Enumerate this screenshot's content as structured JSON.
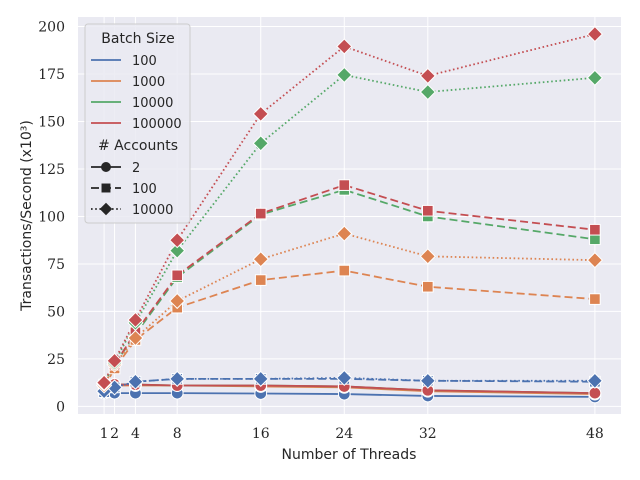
{
  "chart_data": {
    "type": "line",
    "xlabel": "Number of Threads",
    "ylabel": "Transactions/Second (x10³)",
    "xlim": [
      -1.5,
      50.5
    ],
    "ylim": [
      -4,
      205
    ],
    "xticks": [
      1,
      2,
      4,
      8,
      16,
      24,
      32,
      48
    ],
    "yticks": [
      0,
      25,
      50,
      75,
      100,
      125,
      150,
      175,
      200
    ],
    "grid": true,
    "legend_position": "top-left",
    "x": [
      1,
      2,
      4,
      8,
      16,
      24,
      32,
      48
    ],
    "legend": {
      "hue_title": "Batch Size",
      "style_title": "# Accounts",
      "batch_sizes": [
        {
          "label": "100",
          "color": "#4C72B0"
        },
        {
          "label": "1000",
          "color": "#DD8452"
        },
        {
          "label": "10000",
          "color": "#55A868"
        },
        {
          "label": "100000",
          "color": "#C44E52"
        }
      ],
      "accounts": [
        {
          "label": "2",
          "dash": "solid",
          "marker": "circle"
        },
        {
          "label": "100",
          "dash": "dashed",
          "marker": "square"
        },
        {
          "label": "10000",
          "dash": "dotted",
          "marker": "diamond"
        }
      ]
    },
    "series": [
      {
        "name": "100 / 2",
        "batch": "100",
        "accounts": "2",
        "color": "#4C72B0",
        "dash": "solid",
        "marker": "circle",
        "values": [
          7,
          7,
          7,
          7,
          6.8,
          6.5,
          5.5,
          5
        ]
      },
      {
        "name": "1000 / 2",
        "batch": "1000",
        "accounts": "2",
        "color": "#DD8452",
        "dash": "solid",
        "marker": "circle",
        "values": [
          10,
          11,
          11,
          11,
          10.5,
          10,
          8,
          6.5
        ]
      },
      {
        "name": "10000 / 2",
        "batch": "10000",
        "accounts": "2",
        "color": "#55A868",
        "dash": "solid",
        "marker": "circle",
        "values": [
          11,
          11.5,
          11.5,
          11,
          11,
          10.5,
          8.5,
          7
        ]
      },
      {
        "name": "100000 / 2",
        "batch": "100000",
        "accounts": "2",
        "color": "#C44E52",
        "dash": "solid",
        "marker": "circle",
        "values": [
          12,
          11.5,
          11.5,
          11,
          11,
          10.5,
          8.5,
          7
        ]
      },
      {
        "name": "100 / 100",
        "batch": "100",
        "accounts": "100",
        "color": "#4C72B0",
        "dash": "dashed",
        "marker": "square",
        "values": [
          7.5,
          10,
          13,
          14.5,
          14.5,
          14.5,
          13.5,
          13
        ]
      },
      {
        "name": "1000 / 100",
        "batch": "1000",
        "accounts": "100",
        "color": "#DD8452",
        "dash": "dashed",
        "marker": "square",
        "values": [
          10,
          20,
          35,
          52,
          66.5,
          71.5,
          63,
          56.5
        ]
      },
      {
        "name": "10000 / 100",
        "batch": "10000",
        "accounts": "100",
        "color": "#55A868",
        "dash": "dashed",
        "marker": "square",
        "values": [
          11,
          22,
          38,
          68,
          101,
          114,
          100,
          88
        ]
      },
      {
        "name": "100000 / 100",
        "batch": "100000",
        "accounts": "100",
        "color": "#C44E52",
        "dash": "dashed",
        "marker": "square",
        "values": [
          11.5,
          22,
          39,
          69,
          101.5,
          116.5,
          103,
          93
        ]
      },
      {
        "name": "100 / 10000",
        "batch": "100",
        "accounts": "10000",
        "color": "#4C72B0",
        "dash": "dotted",
        "marker": "diamond",
        "values": [
          8,
          10,
          13,
          14.5,
          14.5,
          15,
          13.5,
          13.5
        ]
      },
      {
        "name": "1000 / 10000",
        "batch": "1000",
        "accounts": "10000",
        "color": "#DD8452",
        "dash": "dotted",
        "marker": "diamond",
        "values": [
          11,
          22,
          36,
          55.5,
          77.5,
          91,
          79,
          77
        ]
      },
      {
        "name": "10000 / 10000",
        "batch": "10000",
        "accounts": "10000",
        "color": "#55A868",
        "dash": "dotted",
        "marker": "diamond",
        "values": [
          12,
          23,
          44,
          82,
          138.5,
          174.5,
          165.5,
          173
        ]
      },
      {
        "name": "100000 / 10000",
        "batch": "100000",
        "accounts": "10000",
        "color": "#C44E52",
        "dash": "dotted",
        "marker": "diamond",
        "values": [
          12.5,
          24,
          45.5,
          87.5,
          154,
          189.5,
          174,
          196
        ]
      }
    ]
  }
}
